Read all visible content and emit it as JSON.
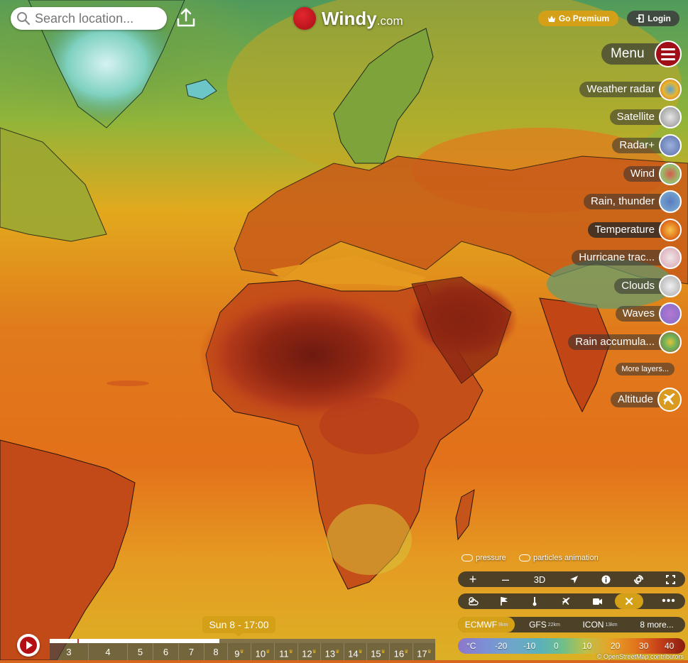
{
  "search": {
    "placeholder": "Search location..."
  },
  "logo": {
    "name": "Windy",
    "domain": ".com"
  },
  "header": {
    "premium_label": "Go Premium",
    "login_label": "Login"
  },
  "menu": {
    "label": "Menu"
  },
  "layers": [
    {
      "label": "Weather radar",
      "icon": "weather-radar-thumb",
      "active": false
    },
    {
      "label": "Satellite",
      "icon": "satellite-thumb",
      "active": false
    },
    {
      "label": "Radar+",
      "icon": "radar-plus-thumb",
      "active": false
    },
    {
      "label": "Wind",
      "icon": "wind-thumb",
      "active": false
    },
    {
      "label": "Rain, thunder",
      "icon": "rain-thunder-thumb",
      "active": false
    },
    {
      "label": "Temperature",
      "icon": "temperature-thumb",
      "active": true
    },
    {
      "label": "Hurricane trac...",
      "icon": "hurricane-thumb",
      "active": false
    },
    {
      "label": "Clouds",
      "icon": "clouds-thumb",
      "active": false
    },
    {
      "label": "Waves",
      "icon": "waves-thumb",
      "active": false
    },
    {
      "label": "Rain accumula...",
      "icon": "rain-accumulation-thumb",
      "active": false
    }
  ],
  "more_layers": "More layers...",
  "altitude": {
    "label": "Altitude",
    "icon": "plane-icon"
  },
  "toggles": {
    "pressure": "pressure",
    "particles": "particles animation"
  },
  "map_controls": {
    "zoom_in": "+",
    "zoom_out": "–",
    "three_d": "3D"
  },
  "models": [
    {
      "name": "ECMWF",
      "res": "9km",
      "selected": true
    },
    {
      "name": "GFS",
      "res": "22km",
      "selected": false
    },
    {
      "name": "ICON",
      "res": "13km",
      "selected": false
    },
    {
      "name": "8 more...",
      "res": "",
      "selected": false
    }
  ],
  "legend": {
    "unit": "°C",
    "values": [
      "-20",
      "-10",
      "0",
      "10",
      "20",
      "30",
      "40"
    ]
  },
  "credit": "© OpenStreetMap contributors",
  "timeline": {
    "current": "Sun 8 - 17:00",
    "progress": 0.44,
    "days": [
      "3",
      "4",
      "5",
      "6",
      "7",
      "8",
      "9",
      "10",
      "11",
      "12",
      "13",
      "14",
      "15",
      "16",
      "17"
    ]
  },
  "colors": {
    "accent": "#d4a017",
    "brand_red": "#b50f16"
  }
}
